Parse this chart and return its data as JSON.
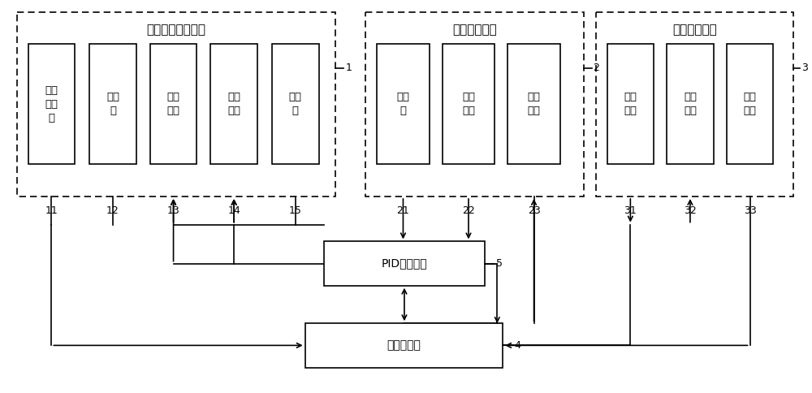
{
  "bg_color": "#ffffff",
  "fig_width": 10.0,
  "fig_height": 4.84,
  "group1_title": "激光增材制造系统",
  "group1_label": "1",
  "group1_boxes": [
    "工业\n机器\n人",
    "激光\n器",
    "冷却\n系统",
    "送粉\n系统",
    "激光\n头"
  ],
  "group1_labels": [
    "11",
    "12",
    "13",
    "14",
    "15"
  ],
  "group2_title": "温度传感模块",
  "group2_label": "2",
  "group2_boxes": [
    "高温\n计",
    "光纤\n镜头",
    "同轴\n装置"
  ],
  "group2_labels": [
    "21",
    "22",
    "23"
  ],
  "group3_title": "视觉传感模块",
  "group3_label": "3",
  "group3_boxes": [
    "工业\n相机",
    "微距\n镜头",
    "主动\n光源"
  ],
  "group3_labels": [
    "31",
    "32",
    "33"
  ],
  "pid_label": "PID控制模块",
  "pid_num": "5",
  "embed_label": "嵌入式模块",
  "embed_num": "4"
}
